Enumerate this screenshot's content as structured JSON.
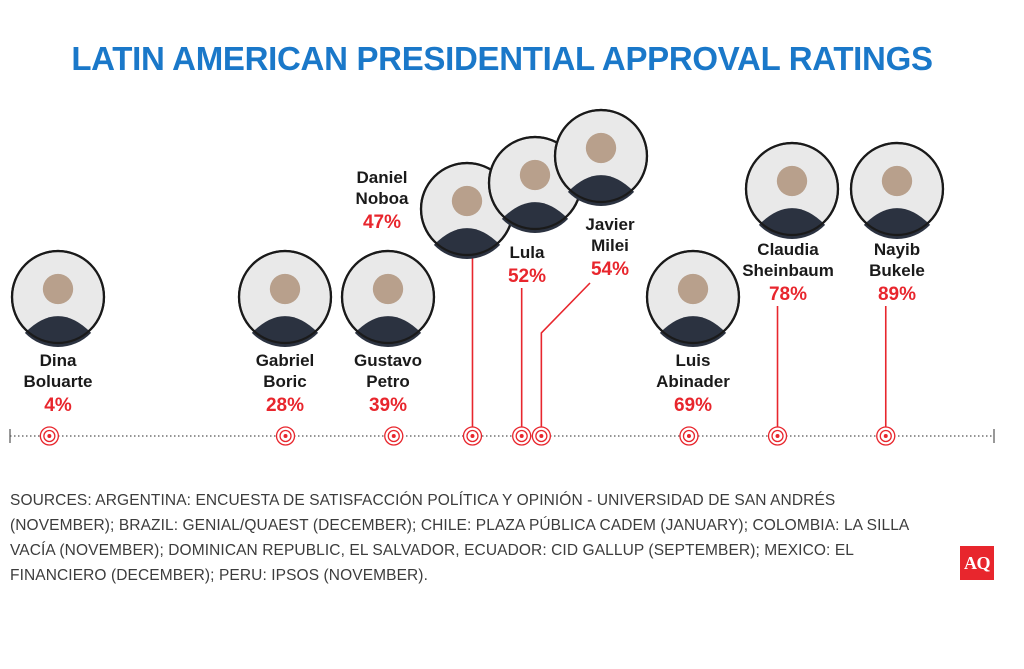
{
  "title": "LATIN AMERICAN PRESIDENTIAL APPROVAL RATINGS",
  "colors": {
    "title": "#1a78c9",
    "accent": "#e8262d",
    "text": "#1a1a1a",
    "axis": "#555555",
    "source_text": "#3c3c3c"
  },
  "chart_data": {
    "type": "scatter",
    "title": "LATIN AMERICAN PRESIDENTIAL APPROVAL RATINGS",
    "xlabel": "",
    "ylabel": "",
    "xlim": [
      0,
      100
    ],
    "unit": "%",
    "points": [
      {
        "name_lines": [
          "Dina",
          "Boluarte"
        ],
        "value": 4,
        "label": "4%"
      },
      {
        "name_lines": [
          "Gabriel",
          "Boric"
        ],
        "value": 28,
        "label": "28%"
      },
      {
        "name_lines": [
          "Gustavo",
          "Petro"
        ],
        "value": 39,
        "label": "39%"
      },
      {
        "name_lines": [
          "Daniel",
          "Noboa"
        ],
        "value": 47,
        "label": "47%"
      },
      {
        "name_lines": [
          "Lula"
        ],
        "value": 52,
        "label": "52%"
      },
      {
        "name_lines": [
          "Javier",
          "Milei"
        ],
        "value": 54,
        "label": "54%"
      },
      {
        "name_lines": [
          "Luis",
          "Abinader"
        ],
        "value": 69,
        "label": "69%"
      },
      {
        "name_lines": [
          "Claudia",
          "Sheinbaum"
        ],
        "value": 78,
        "label": "78%"
      },
      {
        "name_lines": [
          "Nayib",
          "Bukele"
        ],
        "value": 89,
        "label": "89%"
      }
    ]
  },
  "sources": "SOURCES: ARGENTINA: ENCUESTA DE SATISFACCIÓN POLÍTICA Y OPINIÓN - UNIVERSIDAD DE SAN ANDRÉS (NOVEMBER); BRAZIL: GENIAL/QUAEST (DECEMBER); CHILE: PLAZA PÚBLICA CADEM (JANUARY); COLOMBIA: LA SILLA VACÍA (NOVEMBER); DOMINICAN REPUBLIC, EL SALVADOR, ECUADOR: CID GALLUP (SEPTEMBER); MEXICO: EL FINANCIERO (DECEMBER); PERU: IPSOS (NOVEMBER).",
  "logo_text": "AQ"
}
